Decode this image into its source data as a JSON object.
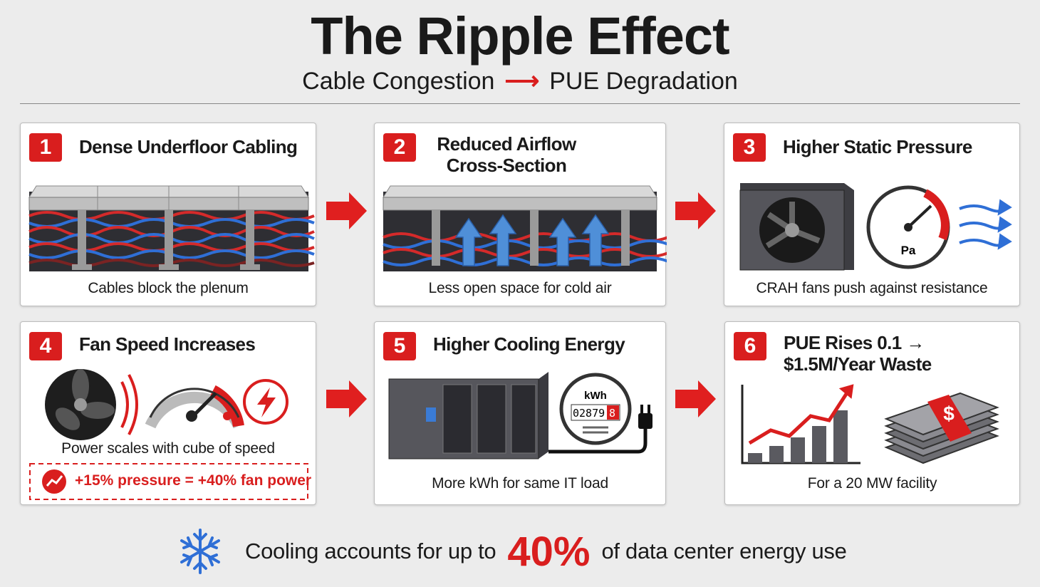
{
  "header": {
    "title": "The Ripple Effect",
    "subtitle_left": "Cable Congestion",
    "subtitle_right": "PUE Degradation"
  },
  "steps": [
    {
      "number": 1,
      "title": "Dense Underfloor Cabling",
      "caption": "Cables block the plenum"
    },
    {
      "number": 2,
      "title": "Reduced Airflow Cross-Section",
      "caption": "Less open space for cold air"
    },
    {
      "number": 3,
      "title": "Higher Static Pressure",
      "caption": "CRAH fans push against resistance",
      "gauge_unit": "Pa"
    },
    {
      "number": 4,
      "title": "Fan Speed Increases",
      "caption": "Power scales with cube of speed",
      "callout": "+15% pressure = +40% fan power"
    },
    {
      "number": 5,
      "title": "Higher Cooling Energy",
      "caption": "More kWh for same IT load",
      "meter_unit": "kWh",
      "meter_digits": "02879",
      "meter_last_digit": "8"
    },
    {
      "number": 6,
      "title": "PUE Rises 0.1 → $1.5M/Year Waste",
      "caption": "For a 20 MW facility",
      "money_symbol": "$"
    }
  ],
  "footer": {
    "text_before": "Cooling accounts for up to",
    "highlight": "40%",
    "text_after": "of data center energy use"
  }
}
